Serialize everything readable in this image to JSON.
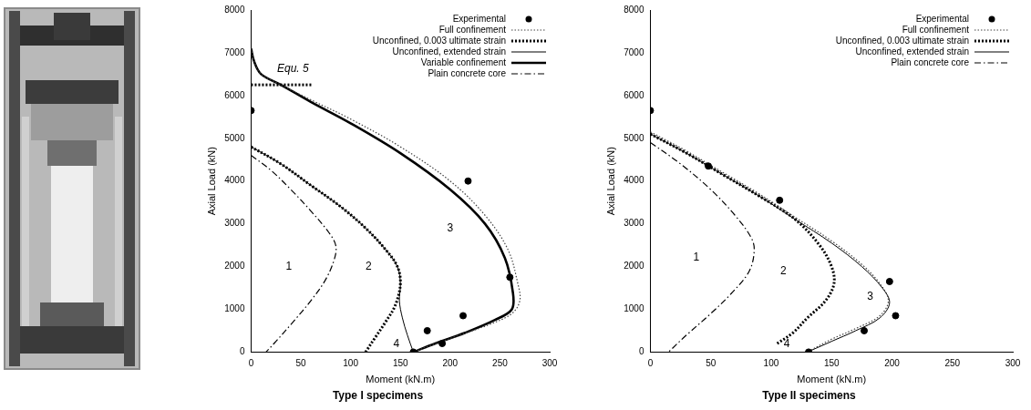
{
  "chart_data": [
    {
      "type": "scatter",
      "title": "Type I specimens",
      "x_label": "Moment (kN.m)",
      "y_label": "Axial Load (kN)",
      "xlim": [
        0,
        300
      ],
      "xticks": [
        0,
        50,
        100,
        150,
        200,
        250,
        300
      ],
      "ylim": [
        0,
        8000
      ],
      "yticks": [
        0,
        1000,
        2000,
        3000,
        4000,
        5000,
        6000,
        7000,
        8000
      ],
      "grid": false,
      "legend": "top right",
      "series": [
        {
          "name": "Experimental",
          "type": "scatter",
          "color": "#000000",
          "marker": "circle",
          "x": [
            0,
            218,
            260,
            177,
            213,
            192,
            163
          ],
          "values": [
            5650,
            4000,
            1750,
            500,
            850,
            200,
            0
          ]
        },
        {
          "name": "Full confinement",
          "type": "line",
          "color": "#444444",
          "line_style": "dotted",
          "x": [
            0,
            3,
            10,
            30,
            60,
            100,
            150,
            200,
            235,
            258,
            268,
            270,
            262,
            240,
            210,
            180,
            163
          ],
          "values": [
            7100,
            6800,
            6500,
            6250,
            5900,
            5450,
            4800,
            4000,
            3200,
            2400,
            1600,
            1200,
            900,
            650,
            400,
            150,
            0
          ]
        },
        {
          "name": "Unconfined, 0.003 ultimate strain",
          "type": "line",
          "color": "#000000",
          "line_style": "heavy-dotted",
          "x": [
            0,
            30,
            60,
            90,
            115,
            135,
            147,
            150,
            145,
            135,
            125,
            115
          ],
          "values": [
            4800,
            4400,
            3900,
            3400,
            2900,
            2400,
            2000,
            1600,
            1100,
            700,
            350,
            0
          ]
        },
        {
          "name": "Unconfined, extended strain",
          "type": "line",
          "color": "#000000",
          "line_style": "solid",
          "x": [
            0,
            30,
            60,
            90,
            115,
            135,
            147,
            150,
            149,
            152,
            157,
            163
          ],
          "values": [
            4800,
            4400,
            3900,
            3400,
            2900,
            2400,
            2000,
            1600,
            1200,
            800,
            400,
            0
          ]
        },
        {
          "name": "Variable confinement",
          "type": "line",
          "color": "#000000",
          "line_style": "heavy-solid",
          "x": [
            0,
            3,
            10,
            30,
            60,
            100,
            150,
            200,
            235,
            255,
            263,
            262,
            245,
            215,
            185,
            163
          ],
          "values": [
            7100,
            6800,
            6500,
            6250,
            5850,
            5350,
            4650,
            3800,
            3000,
            2200,
            1400,
            1000,
            750,
            450,
            200,
            0
          ]
        },
        {
          "name": "Plain concrete core",
          "type": "line",
          "color": "#000000",
          "line_style": "dash-dot",
          "x": [
            0,
            20,
            40,
            60,
            78,
            85,
            84,
            75,
            60,
            42,
            25,
            15
          ],
          "values": [
            4600,
            4250,
            3800,
            3300,
            2800,
            2500,
            2200,
            1700,
            1200,
            700,
            250,
            0
          ]
        }
      ],
      "reference_lines": [
        {
          "x": [
            0,
            62
          ],
          "y": 6250,
          "line_style": "heavy-dotted",
          "color": "#000000"
        }
      ],
      "annotations": [
        {
          "text": "Equ. 5",
          "x": 42,
          "y": 6620
        },
        {
          "text": "1",
          "x": 38,
          "y": 2000
        },
        {
          "text": "2",
          "x": 118,
          "y": 2000
        },
        {
          "text": "3",
          "x": 200,
          "y": 2900
        },
        {
          "text": "4",
          "x": 146,
          "y": 180
        }
      ]
    },
    {
      "type": "scatter",
      "title": "Type II specimens",
      "x_label": "Moment (kN.m)",
      "y_label": "Axial Load (kN)",
      "xlim": [
        0,
        300
      ],
      "xticks": [
        0,
        50,
        100,
        150,
        200,
        250,
        300
      ],
      "ylim": [
        0,
        8000
      ],
      "yticks": [
        0,
        1000,
        2000,
        3000,
        4000,
        5000,
        6000,
        7000,
        8000
      ],
      "grid": false,
      "legend": "top right",
      "series": [
        {
          "name": "Experimental",
          "type": "scatter",
          "color": "#000000",
          "marker": "circle",
          "x": [
            0,
            48,
            107,
            198,
            203,
            177,
            131
          ],
          "values": [
            5650,
            4350,
            3550,
            1650,
            850,
            500,
            0
          ]
        },
        {
          "name": "Full confinement",
          "type": "line",
          "color": "#444444",
          "line_style": "dotted",
          "x": [
            0,
            30,
            60,
            90,
            120,
            150,
            175,
            190,
            197,
            190,
            170,
            150,
            130
          ],
          "values": [
            5150,
            4700,
            4200,
            3700,
            3150,
            2600,
            2050,
            1600,
            1200,
            850,
            550,
            300,
            0
          ]
        },
        {
          "name": "Unconfined, 0.003 ultimate strain",
          "type": "line",
          "color": "#000000",
          "line_style": "heavy-dotted",
          "x": [
            0,
            30,
            60,
            90,
            120,
            140,
            150,
            152,
            145,
            130,
            118,
            105
          ],
          "values": [
            5100,
            4650,
            4150,
            3650,
            3100,
            2500,
            2000,
            1600,
            1200,
            800,
            450,
            200
          ]
        },
        {
          "name": "Unconfined, extended strain",
          "type": "line",
          "color": "#000000",
          "line_style": "solid",
          "x": [
            0,
            30,
            60,
            90,
            120,
            150,
            175,
            192,
            198,
            190,
            170,
            150,
            130
          ],
          "values": [
            5100,
            4650,
            4150,
            3650,
            3100,
            2550,
            2000,
            1500,
            1150,
            800,
            500,
            250,
            0
          ]
        },
        {
          "name": "Plain concrete core",
          "type": "line",
          "color": "#000000",
          "line_style": "dash-dot",
          "x": [
            0,
            25,
            50,
            70,
            83,
            86,
            82,
            68,
            50,
            30,
            15
          ],
          "values": [
            4900,
            4400,
            3800,
            3200,
            2700,
            2400,
            1900,
            1400,
            900,
            400,
            0
          ]
        }
      ],
      "annotations": [
        {
          "text": "1",
          "x": 38,
          "y": 2200
        },
        {
          "text": "2",
          "x": 110,
          "y": 1900
        },
        {
          "text": "3",
          "x": 182,
          "y": 1300
        },
        {
          "text": "4",
          "x": 113,
          "y": 180
        }
      ]
    }
  ]
}
